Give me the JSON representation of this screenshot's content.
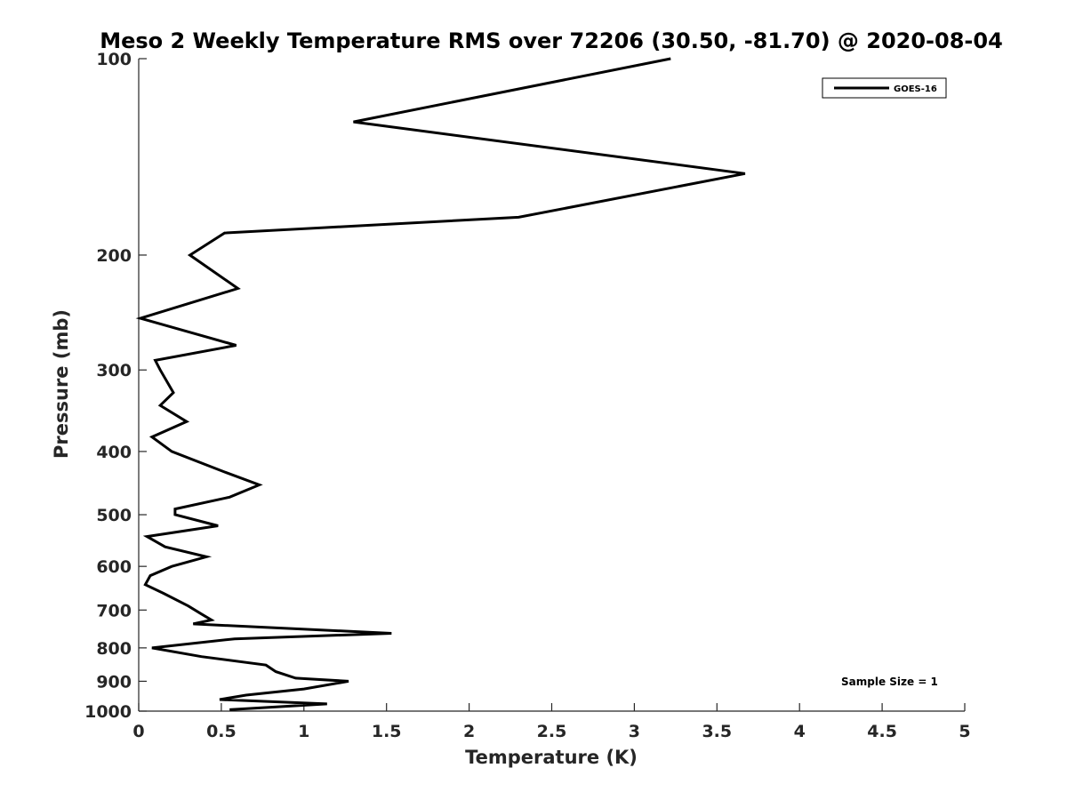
{
  "chart_data": {
    "type": "line",
    "title": "Meso 2 Weekly Temperature RMS over 72206 (30.50, -81.70) @ 2020-08-04",
    "xlabel": "Temperature (K)",
    "ylabel": "Pressure (mb)",
    "xlim": [
      0,
      5
    ],
    "ylim": [
      100,
      1000
    ],
    "y_scale": "log",
    "y_reversed": true,
    "x_ticks": [
      "0",
      "0.5",
      "1",
      "1.5",
      "2",
      "2.5",
      "3",
      "3.5",
      "4",
      "4.5",
      "5"
    ],
    "y_ticks": [
      "100",
      "200",
      "300",
      "400",
      "500",
      "600",
      "700",
      "800",
      "900",
      "1000"
    ],
    "legend_position": "top-right",
    "grid": false,
    "annotation": "Sample Size = 1",
    "series": [
      {
        "name": "GOES-16",
        "color": "#000000",
        "points": [
          [
            3.22,
            100
          ],
          [
            1.3,
            125
          ],
          [
            3.67,
            150
          ],
          [
            2.3,
            175
          ],
          [
            0.52,
            185
          ],
          [
            0.31,
            200
          ],
          [
            0.6,
            225
          ],
          [
            0.01,
            250
          ],
          [
            0.59,
            275
          ],
          [
            0.1,
            290
          ],
          [
            0.13,
            300
          ],
          [
            0.21,
            325
          ],
          [
            0.13,
            340
          ],
          [
            0.29,
            360
          ],
          [
            0.08,
            380
          ],
          [
            0.2,
            400
          ],
          [
            0.52,
            430
          ],
          [
            0.73,
            450
          ],
          [
            0.55,
            470
          ],
          [
            0.22,
            490
          ],
          [
            0.22,
            500
          ],
          [
            0.48,
            520
          ],
          [
            0.05,
            540
          ],
          [
            0.16,
            560
          ],
          [
            0.41,
            580
          ],
          [
            0.2,
            600
          ],
          [
            0.07,
            620
          ],
          [
            0.04,
            640
          ],
          [
            0.15,
            660
          ],
          [
            0.3,
            690
          ],
          [
            0.38,
            710
          ],
          [
            0.44,
            725
          ],
          [
            0.33,
            735
          ],
          [
            1.53,
            760
          ],
          [
            0.58,
            775
          ],
          [
            0.08,
            800
          ],
          [
            0.38,
            825
          ],
          [
            0.77,
            850
          ],
          [
            0.83,
            870
          ],
          [
            0.95,
            890
          ],
          [
            1.27,
            900
          ],
          [
            1.0,
            925
          ],
          [
            0.65,
            945
          ],
          [
            0.49,
            960
          ],
          [
            1.14,
            975
          ],
          [
            0.55,
            995
          ]
        ]
      }
    ]
  }
}
